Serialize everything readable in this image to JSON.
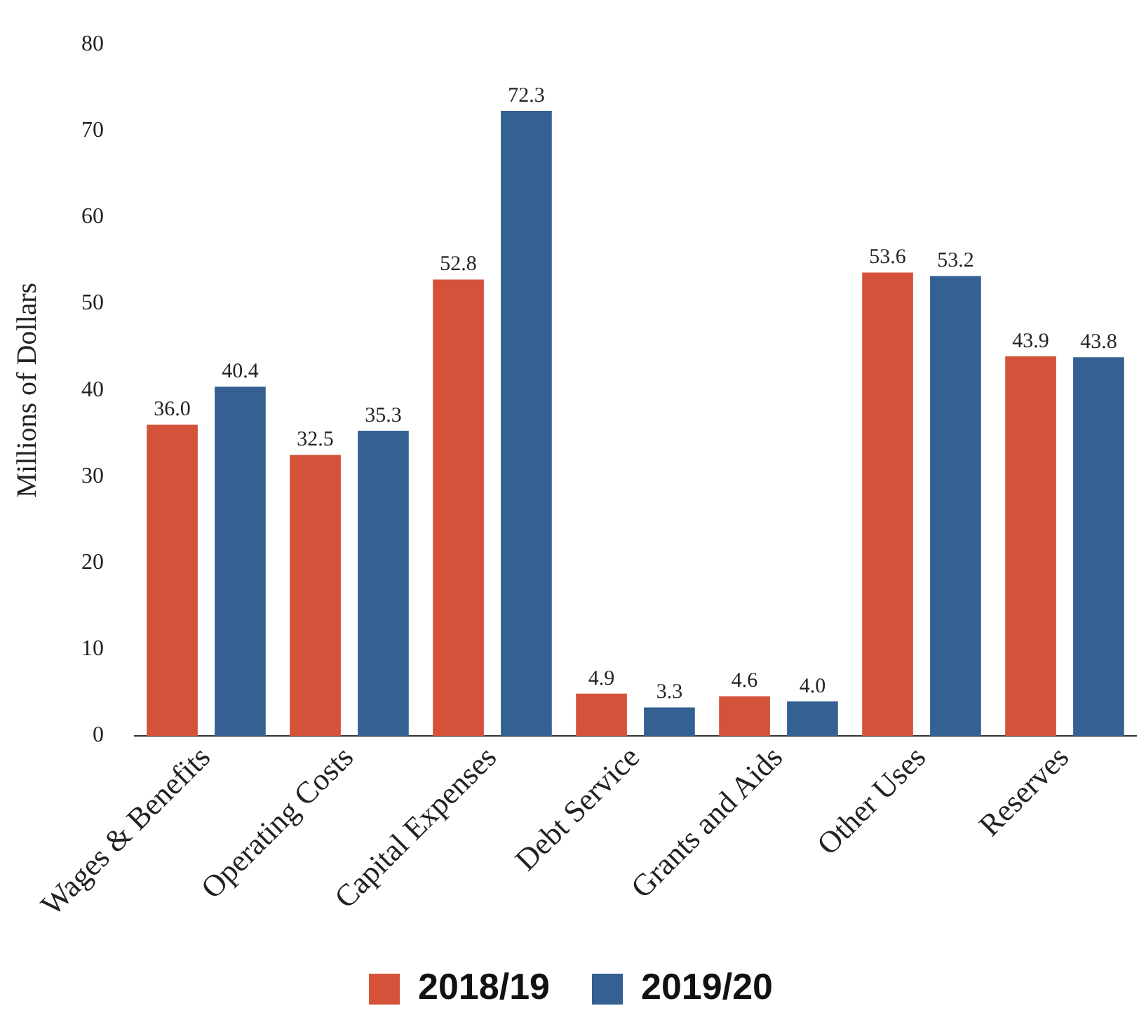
{
  "chart_data": {
    "type": "bar",
    "ylabel": "Millions of Dollars",
    "categories": [
      "Wages & Benefits",
      "Operating Costs",
      "Capital Expenses",
      "Debt Service",
      "Grants and Aids",
      "Other Uses",
      "Reserves"
    ],
    "series": [
      {
        "name": "2018/19",
        "color": "#d4513a",
        "values": [
          36.0,
          32.5,
          52.8,
          4.9,
          4.6,
          53.6,
          43.9
        ],
        "value_labels": [
          "36.0",
          "32.5",
          "52.8",
          "4.9",
          "4.6",
          "53.6",
          "43.9"
        ]
      },
      {
        "name": "2019/20",
        "color": "#356092",
        "values": [
          40.4,
          35.3,
          72.3,
          3.3,
          4.0,
          53.2,
          43.8
        ],
        "value_labels": [
          "40.4",
          "35.3",
          "72.3",
          "3.3",
          "4.0",
          "53.2",
          "43.8"
        ]
      }
    ],
    "ylim": [
      0,
      80
    ],
    "yticks": [
      0,
      10,
      20,
      30,
      40,
      50,
      60,
      70,
      80
    ],
    "grid": false,
    "legend": "bottom"
  }
}
